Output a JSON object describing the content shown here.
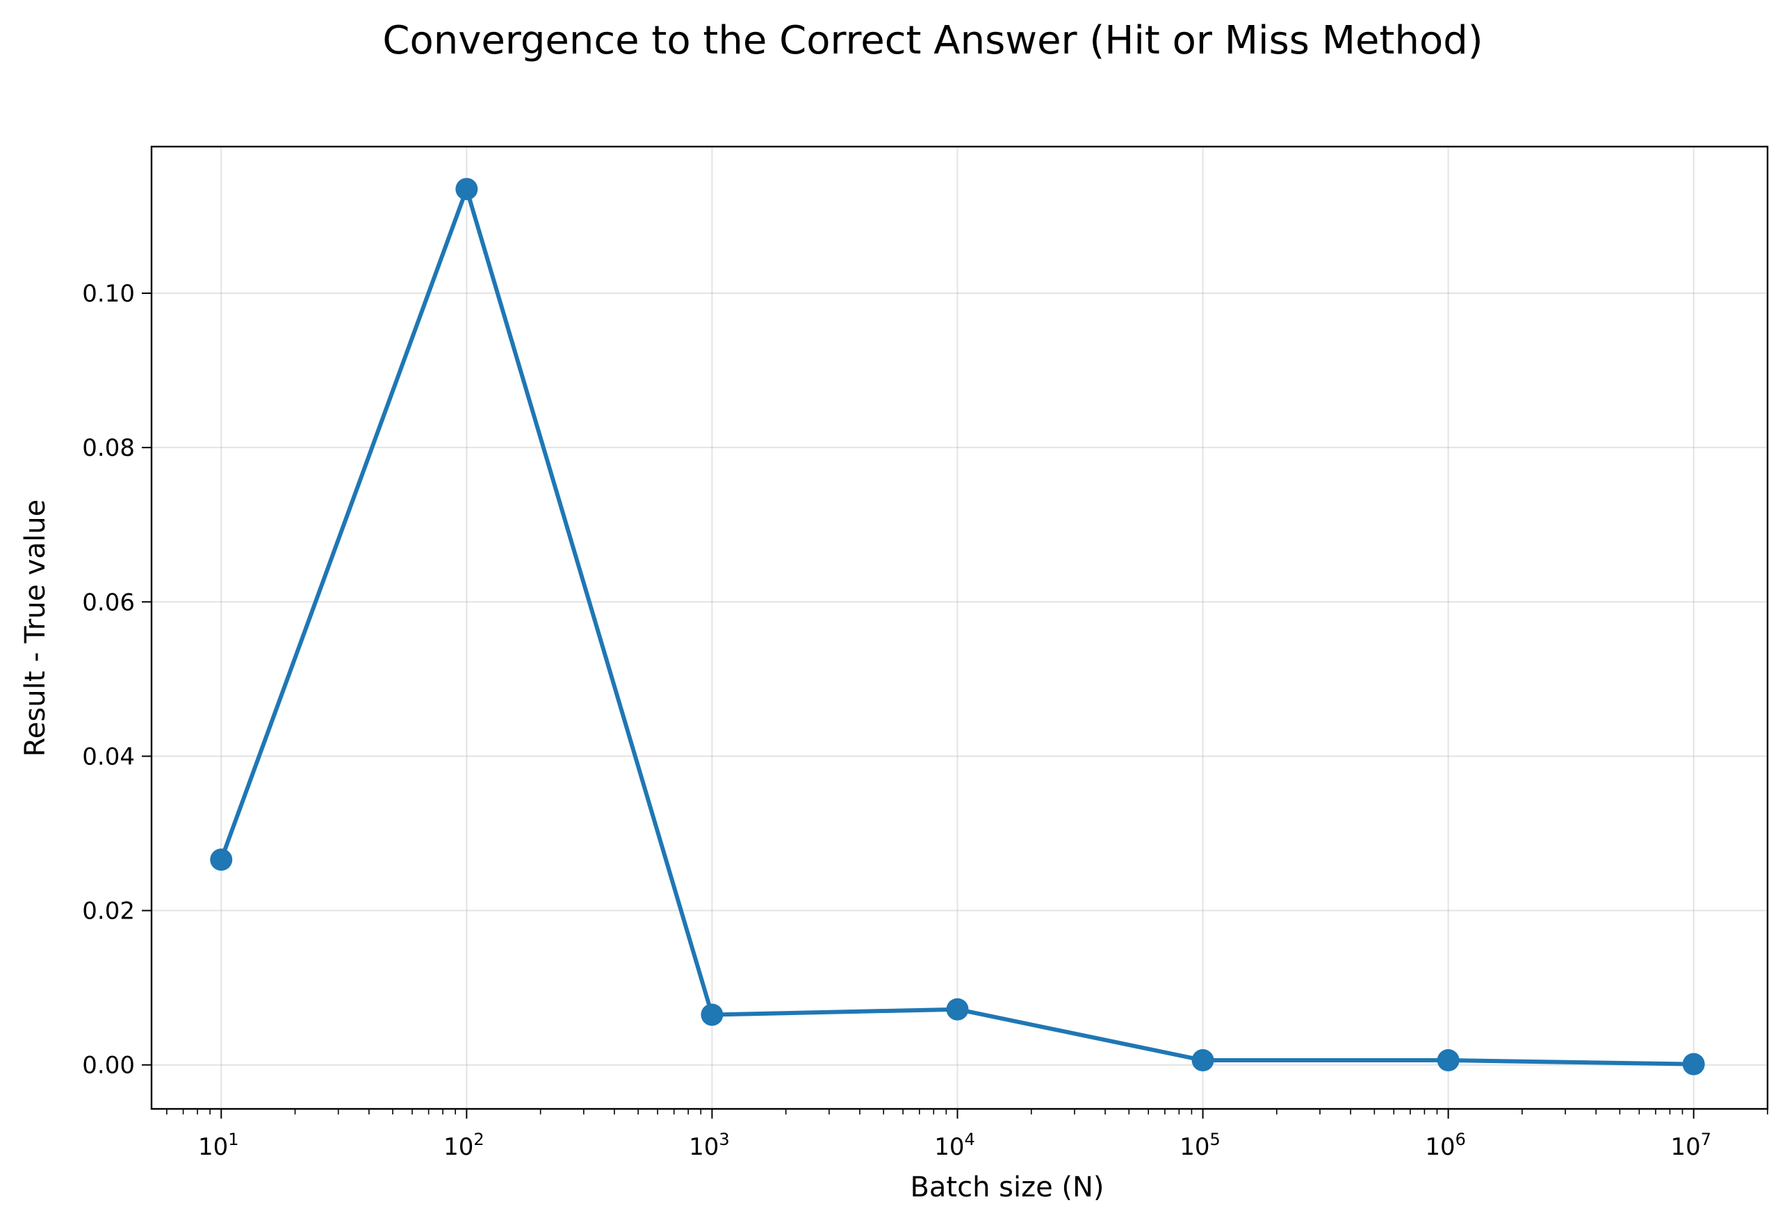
{
  "chart_data": {
    "type": "line",
    "title": "Convergence to the Correct Answer (Hit or Miss Method)",
    "xlabel": "Batch size (N)",
    "ylabel": "Result - True value",
    "xscale": "log",
    "xlim": [
      5.2,
      20000000
    ],
    "ylim": [
      -0.0057,
      0.119
    ],
    "grid": true,
    "legend": "none",
    "x_ticks": [
      {
        "base": "10",
        "exp": "1",
        "value": 10
      },
      {
        "base": "10",
        "exp": "2",
        "value": 100
      },
      {
        "base": "10",
        "exp": "3",
        "value": 1000
      },
      {
        "base": "10",
        "exp": "4",
        "value": 10000
      },
      {
        "base": "10",
        "exp": "5",
        "value": 100000
      },
      {
        "base": "10",
        "exp": "6",
        "value": 1000000
      },
      {
        "base": "10",
        "exp": "7",
        "value": 10000000
      }
    ],
    "y_ticks": [
      "0.00",
      "0.02",
      "0.04",
      "0.06",
      "0.08",
      "0.10"
    ],
    "series": [
      {
        "color": "#1f77b4",
        "marker": "circle",
        "x": [
          10,
          100,
          1000,
          10000,
          100000,
          1000000,
          10000000
        ],
        "y": [
          0.0266,
          0.1135,
          0.0065,
          0.0072,
          0.0006,
          0.0006,
          0.0001
        ]
      }
    ]
  }
}
